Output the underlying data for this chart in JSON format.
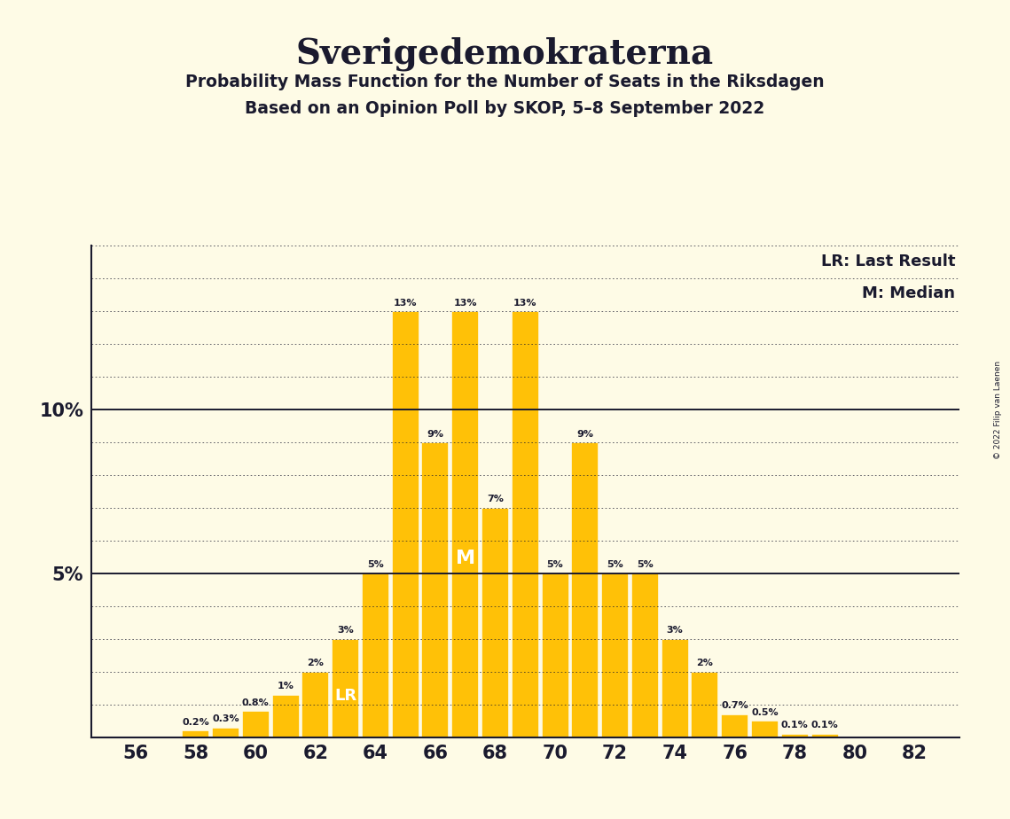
{
  "title": "Sverigedemokraterna",
  "subtitle1": "Probability Mass Function for the Number of Seats in the Riksdagen",
  "subtitle2": "Based on an Opinion Poll by SKOP, 5–8 September 2022",
  "copyright": "© 2022 Filip van Laenen",
  "seats": [
    56,
    57,
    58,
    59,
    60,
    61,
    62,
    63,
    64,
    65,
    66,
    67,
    68,
    69,
    70,
    71,
    72,
    73,
    74,
    75,
    76,
    77,
    78,
    79,
    80,
    81,
    82
  ],
  "probabilities": [
    0.0,
    0.0,
    0.2,
    0.3,
    0.8,
    1.3,
    2.0,
    3.0,
    5.0,
    13.0,
    9.0,
    13.0,
    7.0,
    13.0,
    5.0,
    9.0,
    5.0,
    5.0,
    3.0,
    2.0,
    0.7,
    0.5,
    0.1,
    0.1,
    0.0,
    0.0,
    0.0
  ],
  "bar_color": "#FFC107",
  "background_color": "#FEFBE6",
  "text_color": "#1a1a2e",
  "lr_seat": 63,
  "median_seat": 67,
  "ylim_max": 15.0,
  "legend_lr": "LR: Last Result",
  "legend_m": "M: Median"
}
